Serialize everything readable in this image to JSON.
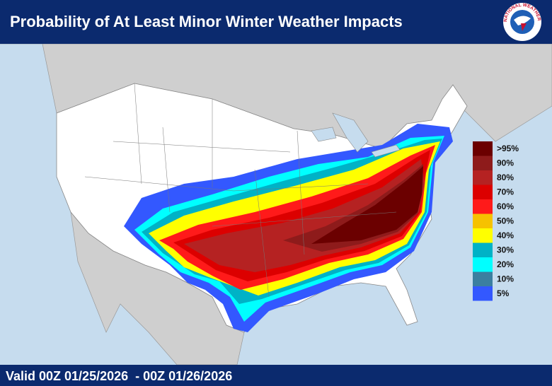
{
  "header": {
    "title": "Probability of At Least Minor Winter Weather Impacts"
  },
  "logo": {
    "text": "NATIONAL WEATHER SERVICE"
  },
  "legend": {
    "items": [
      {
        "label": ">95%",
        "color": "#6b0000"
      },
      {
        "label": "90%",
        "color": "#8e1b1b"
      },
      {
        "label": "80%",
        "color": "#b52222"
      },
      {
        "label": "70%",
        "color": "#dc0000"
      },
      {
        "label": "60%",
        "color": "#ff1a1a"
      },
      {
        "label": "50%",
        "color": "#f6c200"
      },
      {
        "label": "40%",
        "color": "#ffff00"
      },
      {
        "label": "30%",
        "color": "#00b2c6"
      },
      {
        "label": "20%",
        "color": "#00ffff"
      },
      {
        "label": "10%",
        "color": "#3b7fa0"
      },
      {
        "label": "5%",
        "color": "#3358ff"
      }
    ]
  },
  "footer": {
    "valid": "Valid 00Z 01/25/2026  - 00Z 01/26/2026"
  }
}
